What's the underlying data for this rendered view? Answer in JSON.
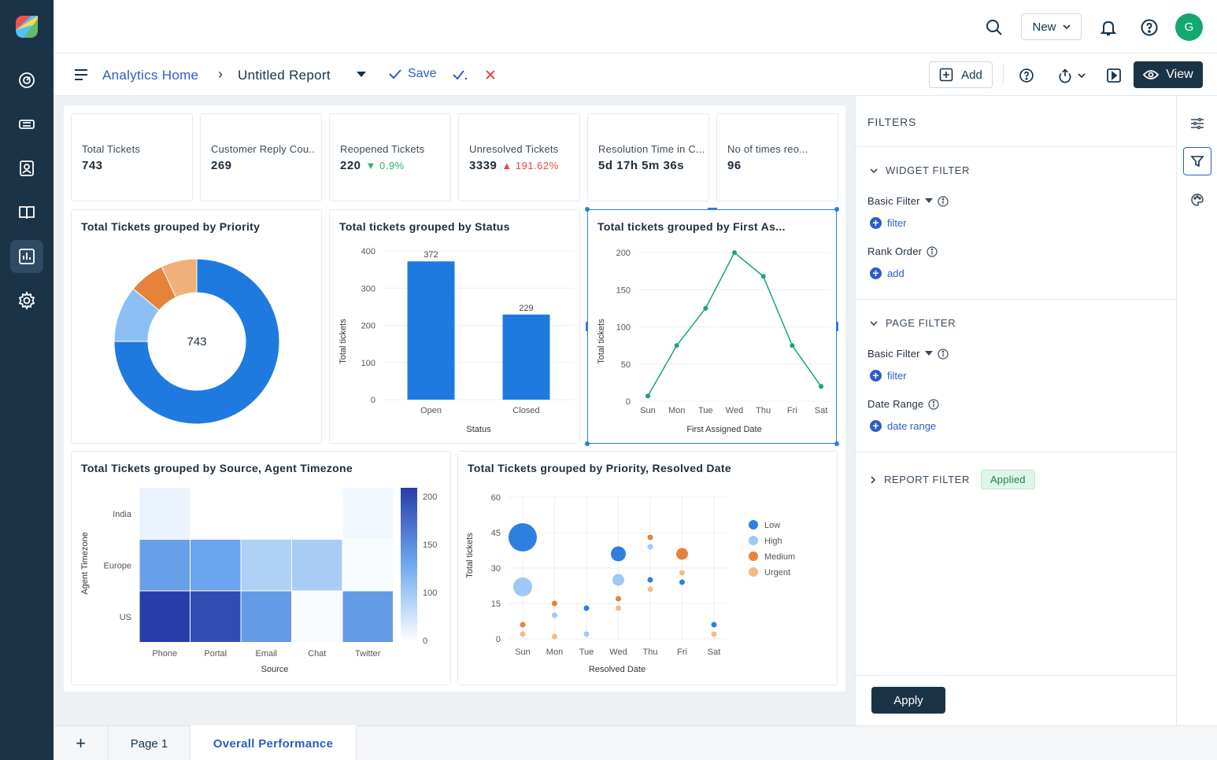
{
  "topbar": {
    "new_label": "New",
    "avatar_initial": "G"
  },
  "breadcrumb": {
    "home": "Analytics Home",
    "separator": "›",
    "report": "Untitled Report",
    "save": "Save"
  },
  "toolbar": {
    "add_label": "Add",
    "view_label": "View"
  },
  "kpis": [
    {
      "label": "Total Tickets",
      "value": "743"
    },
    {
      "label": "Customer Reply Cou..",
      "value": "269"
    },
    {
      "label": "Reopened Tickets",
      "value": "220",
      "delta": "▼ 0.9%"
    },
    {
      "label": "Unresolved Tickets",
      "value": "3339",
      "delta": "▲ 191.62%"
    },
    {
      "label": "Resolution Time in C...",
      "value": "5d 17h 5m 36s"
    },
    {
      "label": "No of times reo...",
      "value": "96"
    }
  ],
  "colors": {
    "accent": "#2c5cc5",
    "sidebar": "#1b3347",
    "positive": "#2db36b",
    "negative": "#e5484d",
    "bar": "#1f7ae0",
    "line": "#1aa56a"
  },
  "chart_data": [
    {
      "type": "pie",
      "title": "Total Tickets grouped by Priority",
      "center_label": "743",
      "slices": [
        {
          "color": "#1f7ae0",
          "value": 0.75
        },
        {
          "color": "#8cc0f5",
          "value": 0.11
        },
        {
          "color": "#e6823a",
          "value": 0.07
        },
        {
          "color": "#f0b07a",
          "value": 0.07
        }
      ]
    },
    {
      "type": "bar",
      "title": "Total tickets grouped by Status",
      "categories": [
        "Open",
        "Closed"
      ],
      "values": [
        372,
        229
      ],
      "xlabel": "Status",
      "ylabel": "Total tickets",
      "ylim": [
        0,
        400
      ],
      "yticks": [
        "0",
        "100",
        "200",
        "300",
        "400"
      ]
    },
    {
      "type": "line",
      "title": "Total tickets grouped by First As...",
      "categories": [
        "Sun",
        "Mon",
        "Tue",
        "Wed",
        "Thu",
        "Fri",
        "Sat"
      ],
      "values": [
        7,
        75,
        125,
        200,
        168,
        75,
        20
      ],
      "xlabel": "First Assigned Date",
      "ylabel": "Total tickets",
      "ylim": [
        0,
        200
      ],
      "yticks": [
        "0",
        "50",
        "100",
        "150",
        "200"
      ]
    },
    {
      "type": "heatmap",
      "title": "Total Tickets grouped by Source, Agent Timezone",
      "x": [
        "Phone",
        "Portal",
        "Email",
        "Chat",
        "Twitter"
      ],
      "y": [
        "India",
        "Europe",
        "US"
      ],
      "values": [
        [
          15,
          0,
          0,
          0,
          10
        ],
        [
          110,
          105,
          55,
          60,
          5
        ],
        [
          200,
          185,
          115,
          5,
          115
        ]
      ],
      "xlabel": "Source",
      "ylabel": "Agent Timezone",
      "scale_ticks": [
        "200",
        "150",
        "100",
        "0"
      ]
    },
    {
      "type": "scatter",
      "title": "Total Tickets grouped by Priority, Resolved Date",
      "categories": [
        "Sun",
        "Mon",
        "Tue",
        "Wed",
        "Thu",
        "Fri",
        "Sat"
      ],
      "xlabel": "Resolved Date",
      "ylabel": "Total tickets",
      "ylim": [
        0,
        60
      ],
      "yticks": [
        "0",
        "15",
        "30",
        "45",
        "60"
      ],
      "series": [
        {
          "name": "Low",
          "color": "#2f7fe0",
          "values": [
            43,
            null,
            13,
            36,
            25,
            24,
            6
          ]
        },
        {
          "name": "High",
          "color": "#9ccaf5",
          "values": [
            22,
            10,
            2,
            25,
            39,
            null,
            null
          ]
        },
        {
          "name": "Medium",
          "color": "#e6823a",
          "values": [
            6,
            15,
            null,
            17,
            43,
            36,
            null
          ]
        },
        {
          "name": "Urgent",
          "color": "#f2bb88",
          "values": [
            2,
            1,
            null,
            13,
            21,
            28,
            2
          ]
        }
      ]
    }
  ],
  "filters": {
    "title": "FILTERS",
    "widget_filter": "WIDGET FILTER",
    "basic_filter": "Basic Filter",
    "filter_link": "filter",
    "rank_order": "Rank Order",
    "add_link": "add",
    "page_filter": "PAGE FILTER",
    "date_range": "Date Range",
    "date_range_link": "date range",
    "report_filter": "REPORT FILTER",
    "applied": "Applied",
    "apply": "Apply"
  },
  "tabs": {
    "add": "+",
    "page1": "Page 1",
    "overall": "Overall Performance"
  }
}
